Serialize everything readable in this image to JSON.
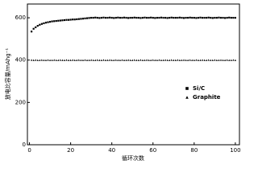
{
  "chart_data": {
    "type": "scatter",
    "ylabel": "放电比容量/mAhg⁻¹",
    "xlabel": "循环次数",
    "x": [
      1,
      2,
      3,
      4,
      5,
      6,
      7,
      8,
      9,
      10,
      11,
      12,
      13,
      14,
      15,
      16,
      17,
      18,
      19,
      20,
      21,
      22,
      23,
      24,
      25,
      26,
      27,
      28,
      29,
      30,
      31,
      32,
      33,
      34,
      35,
      36,
      37,
      38,
      39,
      40,
      41,
      42,
      43,
      44,
      45,
      46,
      47,
      48,
      49,
      50,
      51,
      52,
      53,
      54,
      55,
      56,
      57,
      58,
      59,
      60,
      61,
      62,
      63,
      64,
      65,
      66,
      67,
      68,
      69,
      70,
      71,
      72,
      73,
      74,
      75,
      76,
      77,
      78,
      79,
      80,
      81,
      82,
      83,
      84,
      85,
      86,
      87,
      88,
      89,
      90,
      91,
      92,
      93,
      94,
      95,
      96,
      97,
      98,
      99,
      100
    ],
    "series": [
      {
        "name": "Si/C",
        "color": "#000000",
        "marker": "square",
        "values": [
          535,
          548,
          555,
          562,
          567,
          571,
          574,
          577,
          579,
          581,
          583,
          584,
          585,
          586,
          587,
          588,
          589,
          590,
          590,
          591,
          592,
          592,
          593,
          594,
          595,
          596,
          597,
          598,
          599,
          600,
          600,
          601,
          600,
          599,
          600,
          601,
          600,
          600,
          601,
          600,
          599,
          600,
          601,
          600,
          600,
          601,
          600,
          599,
          600,
          600,
          601,
          600,
          600,
          599,
          600,
          601,
          600,
          600,
          601,
          600,
          599,
          600,
          600,
          601,
          600,
          600,
          599,
          600,
          601,
          600,
          600,
          600,
          601,
          600,
          599,
          600,
          600,
          601,
          600,
          600,
          599,
          600,
          601,
          600,
          600,
          600,
          601,
          600,
          599,
          600,
          600,
          601,
          600,
          600,
          599,
          600,
          601,
          600,
          600,
          600
        ]
      },
      {
        "name": "Graphite",
        "color": "#000000",
        "marker": "triangle",
        "values": [
          401,
          400,
          401,
          400,
          400,
          401,
          400,
          400,
          401,
          400,
          400,
          401,
          400,
          400,
          401,
          400,
          400,
          401,
          400,
          400,
          401,
          400,
          400,
          401,
          400,
          400,
          401,
          400,
          400,
          401,
          400,
          400,
          401,
          400,
          400,
          401,
          400,
          400,
          401,
          400,
          400,
          401,
          400,
          400,
          401,
          400,
          400,
          401,
          400,
          400,
          401,
          400,
          400,
          401,
          400,
          400,
          401,
          400,
          400,
          401,
          400,
          400,
          401,
          400,
          400,
          401,
          400,
          400,
          401,
          400,
          400,
          401,
          400,
          400,
          401,
          400,
          400,
          401,
          400,
          400,
          401,
          400,
          400,
          401,
          400,
          400,
          401,
          400,
          400,
          401,
          400,
          400,
          401,
          400,
          400,
          401,
          400,
          400,
          401,
          400
        ]
      }
    ],
    "xlim": [
      -1,
      102
    ],
    "xticks": [
      0,
      20,
      40,
      60,
      80,
      100
    ],
    "ylim": [
      0,
      665
    ],
    "yticks": [
      0,
      200,
      400,
      600
    ],
    "legend": "right"
  }
}
